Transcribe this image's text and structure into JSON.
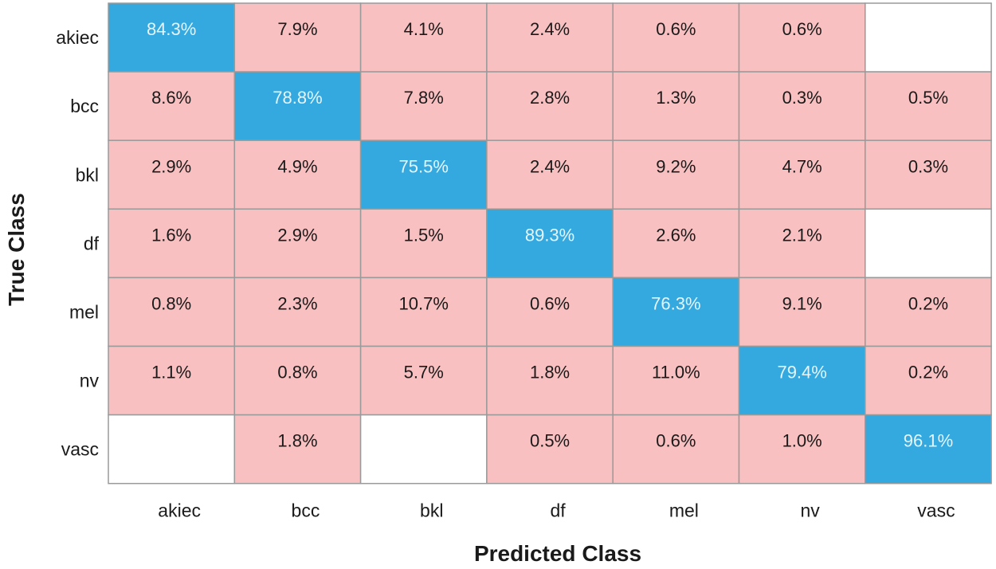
{
  "chart_data": {
    "type": "heatmap",
    "title": "",
    "xlabel": "Predicted Class",
    "ylabel": "True Class",
    "row_labels": [
      "akiec",
      "bcc",
      "bkl",
      "df",
      "mel",
      "nv",
      "vasc"
    ],
    "col_labels": [
      "akiec",
      "bcc",
      "bkl",
      "df",
      "mel",
      "nv",
      "vasc"
    ],
    "cells": [
      [
        "84.3%",
        "7.9%",
        "4.1%",
        "2.4%",
        "0.6%",
        "0.6%",
        ""
      ],
      [
        "8.6%",
        "78.8%",
        "7.8%",
        "2.8%",
        "1.3%",
        "0.3%",
        "0.5%"
      ],
      [
        "2.9%",
        "4.9%",
        "75.5%",
        "2.4%",
        "9.2%",
        "4.7%",
        "0.3%"
      ],
      [
        "1.6%",
        "2.9%",
        "1.5%",
        "89.3%",
        "2.6%",
        "2.1%",
        ""
      ],
      [
        "0.8%",
        "2.3%",
        "10.7%",
        "0.6%",
        "76.3%",
        "9.1%",
        "0.2%"
      ],
      [
        "1.1%",
        "0.8%",
        "5.7%",
        "1.8%",
        "11.0%",
        "79.4%",
        "0.2%"
      ],
      [
        "",
        "1.8%",
        "",
        "0.5%",
        "0.6%",
        "1.0%",
        "96.1%"
      ]
    ],
    "colors": {
      "diagonal": "#33a9e0",
      "off_diagonal": "#f8c0c0",
      "empty": "#ffffff",
      "cell_border": "#9a9a9a",
      "diagonal_text": "#e6f4fb",
      "off_diagonal_text": "#1a1a1a"
    }
  }
}
